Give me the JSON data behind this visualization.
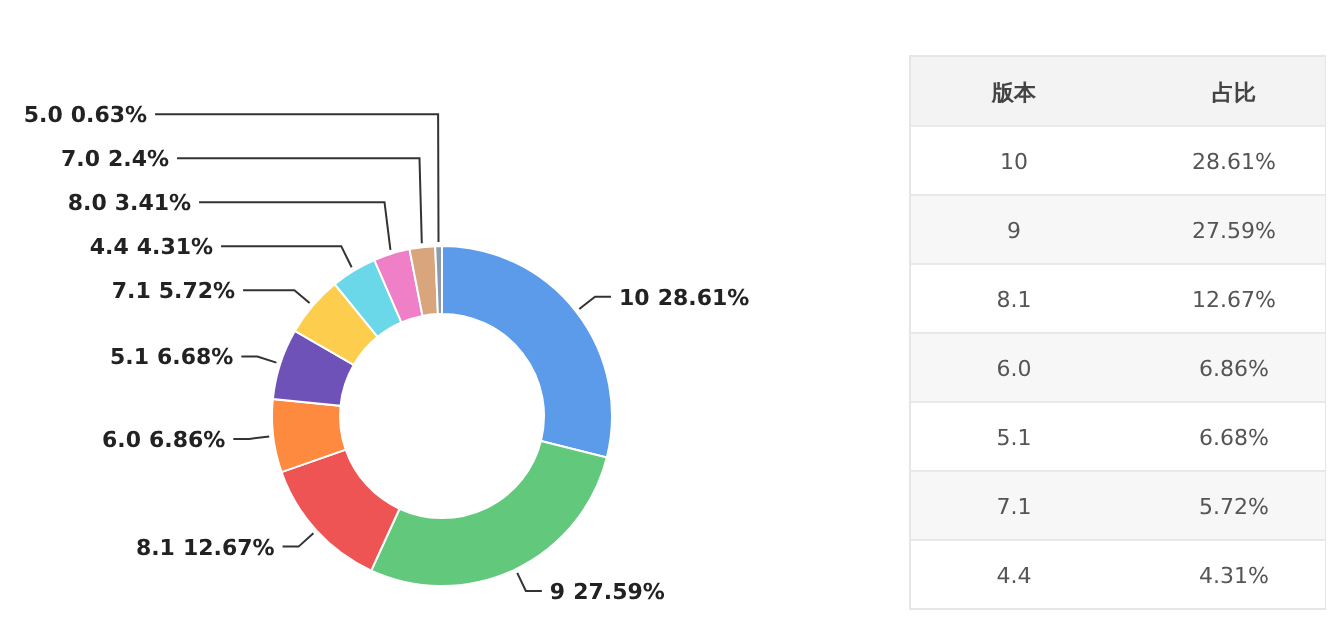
{
  "chart_data": {
    "type": "donut",
    "categories": [
      "10",
      "9",
      "8.1",
      "6.0",
      "5.1",
      "7.1",
      "4.4",
      "8.0",
      "7.0",
      "5.0"
    ],
    "values": [
      28.61,
      27.59,
      12.67,
      6.86,
      6.68,
      5.72,
      4.31,
      3.41,
      2.4,
      0.63
    ],
    "colors": [
      "#5b9bea",
      "#62c87c",
      "#ef5455",
      "#fd8a3e",
      "#6f52b8",
      "#fdce4d",
      "#6ad8e8",
      "#ef7fc7",
      "#d8a57c",
      "#8a9bb0"
    ],
    "value_labels": [
      "28.61%",
      "27.59%",
      "12.67%",
      "6.86%",
      "6.68%",
      "5.72%",
      "4.31%",
      "3.41%",
      "2.4%",
      "0.63%"
    ],
    "annotations": [
      "版本",
      "占比"
    ]
  }
}
